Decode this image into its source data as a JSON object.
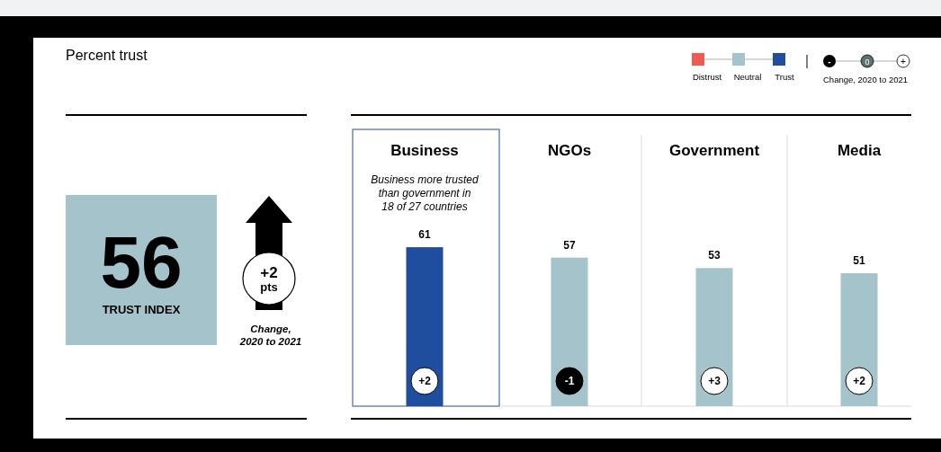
{
  "chart_data": {
    "type": "bar",
    "title": "Percent trust",
    "categories": [
      "Business",
      "NGOs",
      "Government",
      "Media"
    ],
    "series": [
      {
        "name": "Distrust",
        "color": "#f05a4f",
        "values": [
          null,
          null,
          null,
          null
        ]
      },
      {
        "name": "Neutral",
        "color": "#a4c3cb",
        "values": [
          null,
          57,
          53,
          51
        ]
      },
      {
        "name": "Trust",
        "color": "#1f4e9e",
        "values": [
          61,
          null,
          null,
          null
        ]
      }
    ],
    "data_labels": true,
    "legend": "top right",
    "annotations": [
      "56",
      "TRUST INDEX",
      "+2",
      "pts",
      "Change,\n2020 to 2021",
      "-",
      "0",
      "+",
      "Change, 2020 to 2021",
      "Business more trusted\nthan government in\n18 of 27 countries",
      {
        "text": "+2",
        "x": "Business"
      },
      {
        "text": "-1",
        "x": "NGOs"
      },
      {
        "text": "+3",
        "x": "Government"
      },
      {
        "text": "+2",
        "x": "Media"
      }
    ]
  }
}
